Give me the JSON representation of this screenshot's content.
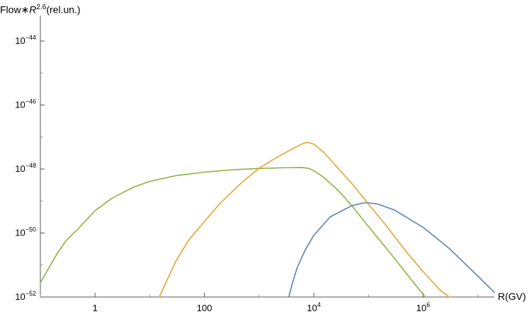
{
  "chart_data": {
    "type": "line",
    "ylabel": {
      "base": "Flow",
      "star": "∗",
      "var": "R",
      "exp": "2.6",
      "unit": "(rel.un.)"
    },
    "xlabel": "R(GV)",
    "x_scale": "log",
    "y_scale": "log",
    "xlim": [
      0.1,
      20000000
    ],
    "ylim": [
      1e-52,
      1e-44
    ],
    "x_ticks": [
      {
        "value": 1,
        "base": "1",
        "exp": ""
      },
      {
        "value": 100,
        "base": "100",
        "exp": ""
      },
      {
        "value": 10000,
        "base": "10",
        "exp": "4"
      },
      {
        "value": 1000000,
        "base": "10",
        "exp": "6"
      }
    ],
    "y_ticks": [
      {
        "value": 1e-52,
        "base": "10",
        "exp": "−52"
      },
      {
        "value": 1e-50,
        "base": "10",
        "exp": "−50"
      },
      {
        "value": 1e-48,
        "base": "10",
        "exp": "−48"
      },
      {
        "value": 1e-46,
        "base": "10",
        "exp": "−46"
      },
      {
        "value": 1e-44,
        "base": "10",
        "exp": "−44"
      }
    ],
    "grid": false,
    "series": [
      {
        "color": "#8db23c",
        "points": [
          [
            0.1,
            2.8e-52
          ],
          [
            0.2,
            2.2e-51
          ],
          [
            0.3,
            6e-51
          ],
          [
            0.5,
            1.4e-50
          ],
          [
            1,
            5e-50
          ],
          [
            2,
            1.2e-49
          ],
          [
            5,
            2.7e-49
          ],
          [
            10,
            4.1e-49
          ],
          [
            30,
            6.2e-49
          ],
          [
            100,
            8e-49
          ],
          [
            300,
            9.4e-49
          ],
          [
            1000,
            1.04e-48
          ],
          [
            3000,
            1.1e-48
          ],
          [
            6000,
            1.12e-48
          ],
          [
            8000,
            1.05e-48
          ],
          [
            10000,
            8.9e-49
          ],
          [
            15000,
            5.6e-49
          ],
          [
            20000,
            3.6e-49
          ],
          [
            30000,
            1.9e-49
          ],
          [
            50000,
            7e-50
          ],
          [
            100000,
            1.6e-50
          ],
          [
            200000,
            3.8e-51
          ],
          [
            500000,
            5.3e-52
          ],
          [
            1000000,
            1.2e-52
          ],
          [
            1100000,
            1e-52
          ]
        ]
      },
      {
        "color": "#e8a232",
        "points": [
          [
            15,
            1e-52
          ],
          [
            20,
            3e-52
          ],
          [
            30,
            1.3e-51
          ],
          [
            50,
            5.6e-51
          ],
          [
            100,
            2.3e-50
          ],
          [
            200,
            9e-50
          ],
          [
            500,
            4e-49
          ],
          [
            1000,
            1.06e-48
          ],
          [
            2000,
            2.2e-48
          ],
          [
            4000,
            4.2e-48
          ],
          [
            6000,
            6e-48
          ],
          [
            7000,
            6.6e-48
          ],
          [
            8000,
            6.75e-48
          ],
          [
            10000,
            6e-48
          ],
          [
            15000,
            3.4e-48
          ],
          [
            20000,
            2e-48
          ],
          [
            30000,
            9e-49
          ],
          [
            50000,
            3.5e-49
          ],
          [
            100000,
            8e-50
          ],
          [
            200000,
            1.9e-50
          ],
          [
            500000,
            2.5e-51
          ],
          [
            1000000,
            6.2e-52
          ],
          [
            2000000,
            1.7e-52
          ],
          [
            3000000,
            1e-52
          ]
        ]
      },
      {
        "color": "#5b82b8",
        "points": [
          [
            3500,
            1e-52
          ],
          [
            4000,
            2.5e-52
          ],
          [
            5000,
            8.5e-52
          ],
          [
            7000,
            3e-51
          ],
          [
            10000,
            8.5e-51
          ],
          [
            20000,
            3.2e-50
          ],
          [
            50000,
            7.2e-50
          ],
          [
            80000,
            8.7e-50
          ],
          [
            100000,
            8.8e-50
          ],
          [
            150000,
            8e-50
          ],
          [
            300000,
            5.2e-50
          ],
          [
            1000000,
            1.5e-50
          ],
          [
            3000000,
            3.3e-51
          ],
          [
            10000000,
            4.5e-52
          ],
          [
            20000000,
            1.4e-52
          ]
        ]
      }
    ]
  }
}
